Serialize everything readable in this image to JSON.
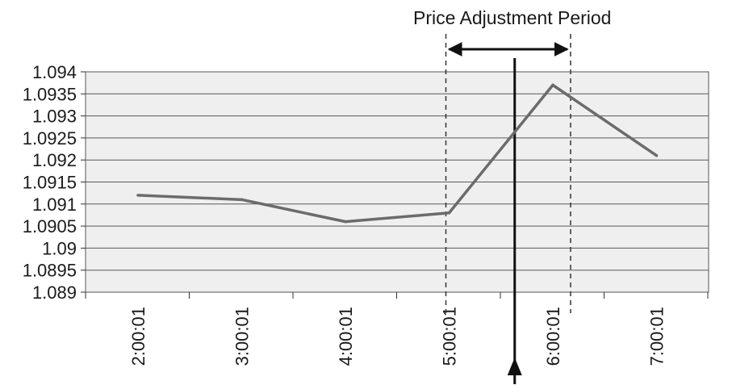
{
  "chart_data": {
    "type": "line",
    "title": "",
    "xlabel": "",
    "ylabel": "",
    "categories": [
      "2:00:01",
      "3:00:01",
      "4:00:01",
      "5:00:01",
      "6:00:01",
      "7:00:01"
    ],
    "series": [
      {
        "values": [
          1.0912,
          1.0911,
          1.0906,
          1.0908,
          1.0937,
          1.0921
        ]
      }
    ],
    "ylim": [
      1.089,
      1.094
    ],
    "y_ticks": [
      "1.089",
      "1.0895",
      "1.09",
      "1.0905",
      "1.091",
      "1.0915",
      "1.092",
      "1.0925",
      "1.093",
      "1.0935",
      "1.094"
    ],
    "grid": true,
    "legend": "none",
    "colors": {
      "line": "#6b6b6b",
      "plot_background": "#efefef",
      "grid": "#5a5a5a",
      "annotation": "#111111"
    },
    "annotations": {
      "period_label": "Price Adjustment Period",
      "period_start": "5:00:01",
      "period_end": "6:00:01",
      "event_marker": "between 5:00:01 and 6:00:01"
    }
  }
}
